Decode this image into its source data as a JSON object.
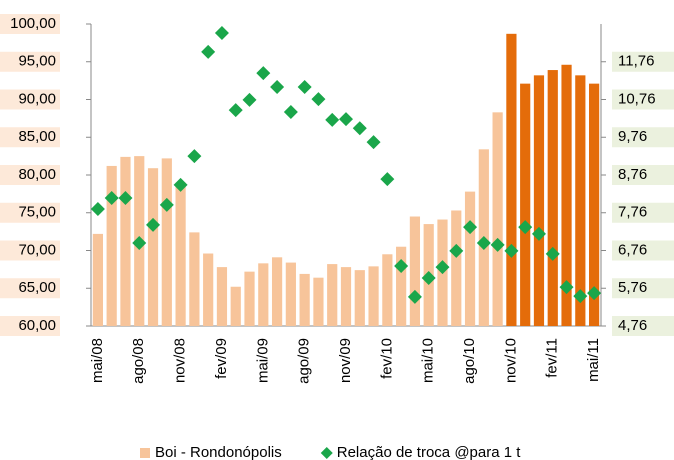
{
  "chart_data": {
    "type": "bar+scatter",
    "categories": [
      "mai/08",
      null,
      null,
      "ago/08",
      null,
      null,
      "nov/08",
      null,
      null,
      "fev/09",
      null,
      null,
      "mai/09",
      null,
      null,
      "ago/09",
      null,
      null,
      "nov/09",
      null,
      null,
      "fev/10",
      null,
      null,
      "mai/10",
      null,
      null,
      "ago/10",
      null,
      null,
      "nov/10",
      null,
      null,
      "fev/11",
      null,
      null,
      "mai/11"
    ],
    "series": [
      {
        "name": "Boi - Rondonópolis",
        "type": "bar",
        "axis": "y",
        "color": "#f7c49a",
        "colors": [
          "#f7c49a",
          "#f7c49a",
          "#f7c49a",
          "#f7c49a",
          "#f7c49a",
          "#f7c49a",
          "#f7c49a",
          "#f7c49a",
          "#f7c49a",
          "#f7c49a",
          "#f7c49a",
          "#f7c49a",
          "#f7c49a",
          "#f7c49a",
          "#f7c49a",
          "#f7c49a",
          "#f7c49a",
          "#f7c49a",
          "#f7c49a",
          "#f7c49a",
          "#f7c49a",
          "#f7c49a",
          "#f7c49a",
          "#f7c49a",
          "#f7c49a",
          "#f7c49a",
          "#f7c49a",
          "#f7c49a",
          "#f7c49a",
          "#f7c49a",
          "#e46c0a",
          "#e46c0a",
          "#e46c0a",
          "#e46c0a",
          "#e46c0a",
          "#e46c0a",
          "#e46c0a"
        ],
        "values": [
          72.2,
          81.2,
          82.4,
          82.5,
          80.9,
          82.2,
          79.0,
          72.4,
          69.6,
          67.8,
          65.2,
          67.2,
          68.3,
          69.1,
          68.4,
          66.9,
          66.4,
          68.2,
          67.8,
          67.4,
          67.9,
          69.5,
          70.5,
          74.5,
          73.5,
          74.1,
          75.3,
          77.8,
          83.4,
          88.3,
          98.7,
          92.1,
          93.2,
          93.9,
          94.6,
          93.2,
          92.1
        ]
      },
      {
        "name": "Relação de troca @para 1 t",
        "type": "scatter",
        "axis": "y2",
        "color": "#1aa64a",
        "values": [
          7.86,
          8.15,
          8.15,
          6.96,
          7.44,
          7.97,
          8.5,
          9.26,
          12.02,
          12.52,
          10.48,
          10.75,
          11.46,
          11.09,
          10.43,
          11.09,
          10.77,
          10.22,
          10.24,
          10.0,
          9.63,
          8.65,
          6.35,
          5.53,
          6.03,
          6.32,
          6.75,
          7.38,
          6.96,
          6.91,
          6.75,
          7.38,
          7.2,
          6.67,
          5.79,
          5.55,
          5.63
        ]
      }
    ],
    "ylim": [
      60,
      100
    ],
    "yticks": [
      {
        "value": 60,
        "label": "60,00"
      },
      {
        "value": 65,
        "label": "65,00"
      },
      {
        "value": 70,
        "label": "70,00"
      },
      {
        "value": 75,
        "label": "75,00"
      },
      {
        "value": 80,
        "label": "80,00"
      },
      {
        "value": 85,
        "label": "85,00"
      },
      {
        "value": 90,
        "label": "90,00"
      },
      {
        "value": 95,
        "label": "95,00"
      },
      {
        "value": 100,
        "label": "100,00"
      }
    ],
    "y2lim": [
      4.76,
      12.76
    ],
    "y2ticks": [
      {
        "value": 4.76,
        "label": "4,76"
      },
      {
        "value": 5.76,
        "label": "5,76"
      },
      {
        "value": 6.76,
        "label": "6,76"
      },
      {
        "value": 7.76,
        "label": "7,76"
      },
      {
        "value": 8.76,
        "label": "8,76"
      },
      {
        "value": 9.76,
        "label": "9,76"
      },
      {
        "value": 10.76,
        "label": "10,76"
      },
      {
        "value": 11.76,
        "label": "11,76"
      }
    ],
    "legend": "bottom"
  }
}
